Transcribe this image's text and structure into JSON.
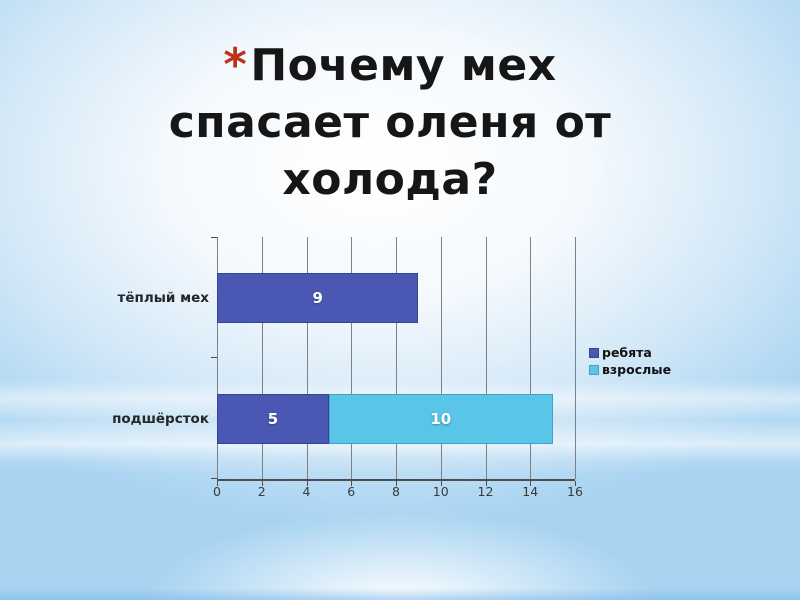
{
  "slide": {
    "title": {
      "bullet": "*",
      "lines": [
        "Почему мех",
        "спасает оленя от",
        "холода?"
      ],
      "bullet_color": "#bf3119",
      "text_color": "#161616"
    },
    "background": {
      "corner_color": "#a7d3f1",
      "center_color": "#ffffff"
    }
  },
  "chart_data": {
    "type": "bar",
    "orientation": "horizontal",
    "stacked": true,
    "grid": true,
    "categories": [
      "тёплый мех",
      "подшёрсток"
    ],
    "series": [
      {
        "name": "ребята",
        "color": "#4a58b4",
        "border": "#36458f",
        "values": [
          9,
          5
        ]
      },
      {
        "name": "взрослые",
        "color": "#58c5e9",
        "border": "#42a3c6",
        "values": [
          0,
          10
        ]
      }
    ],
    "data_labels": [
      [
        "9"
      ],
      [
        "5",
        "10"
      ]
    ],
    "xlim": [
      0,
      16
    ],
    "xticks": [
      "0",
      "2",
      "4",
      "6",
      "8",
      "10",
      "12",
      "14",
      "16"
    ],
    "legend_position": "right",
    "axis_color": "#4d4d4d",
    "gridline_color": "#808080"
  }
}
